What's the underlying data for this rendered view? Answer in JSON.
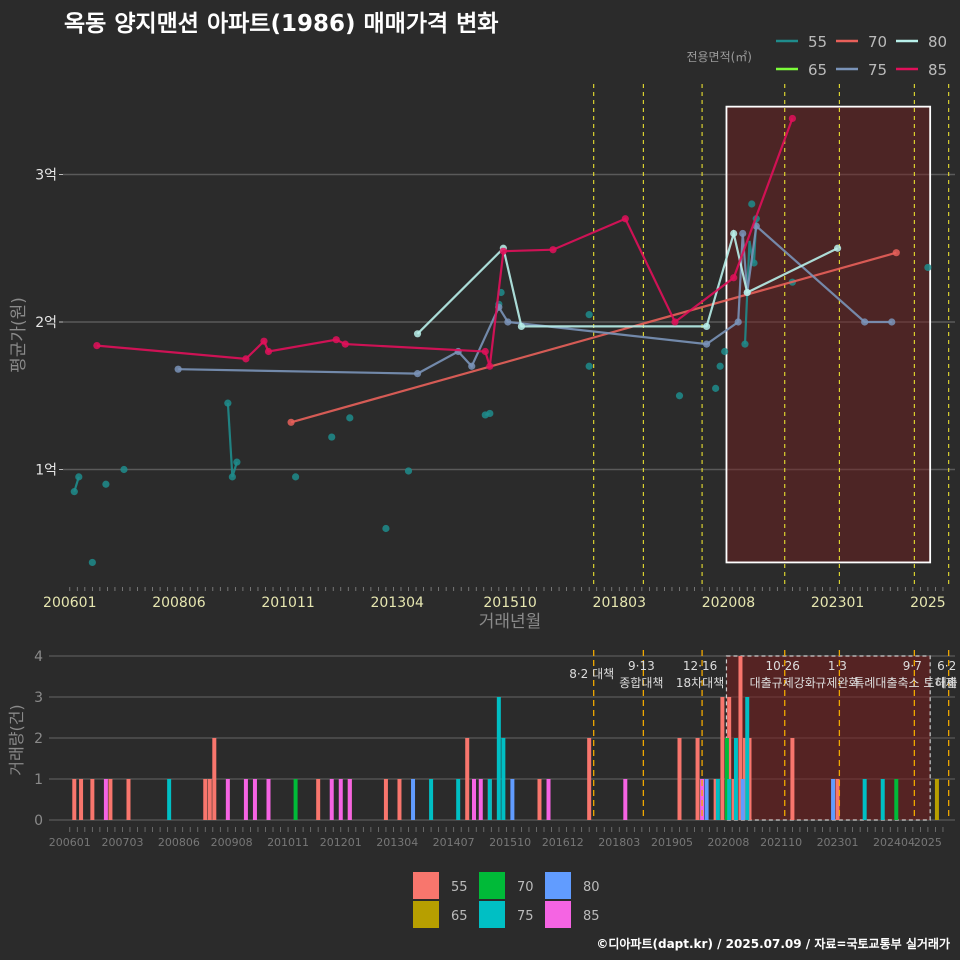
{
  "title": "옥동 양지맨션 아파트(1986) 매매가격 변화",
  "footer": "©디아파트(dapt.kr) / 2025.07.09 / 자료=국토교통부 실거래가",
  "colors": {
    "s55": "#1f8c8c",
    "s65": "#7cfc3a",
    "s70": "#e8605a",
    "s75": "#7a93b8",
    "s80": "#b8f0ea",
    "s85": "#e0105a",
    "b55": "#f8766d",
    "b65": "#b79f00",
    "b70": "#00ba38",
    "b75": "#00bfc4",
    "b80": "#619cff",
    "b85": "#f564e3",
    "policy": "#e8e030",
    "policy2": "#f0a800"
  },
  "chart_data": [
    {
      "type": "line",
      "ylabel": "평균가(원)",
      "xlabel": "거래년월",
      "legend_title": "전용면적(㎡)",
      "legend_position": "top-right",
      "x_ticks": [
        "200601",
        "200806",
        "201011",
        "201304",
        "201510",
        "201803",
        "202008",
        "202301",
        "2025"
      ],
      "y_ticks": [
        {
          "v": 1,
          "label": "1억"
        },
        {
          "v": 2,
          "label": "2억"
        },
        {
          "v": 3,
          "label": "3억"
        }
      ],
      "ylim": [
        0.3,
        3.6
      ],
      "highlight_box": {
        "x0": 2020.54,
        "x1": 2025.05,
        "y0": 0.37,
        "y1": 3.46
      },
      "policy_lines": [
        2017.6,
        2018.7,
        2020.0,
        2021.83,
        2023.04,
        2024.7,
        2025.46
      ],
      "series": [
        {
          "name": "55",
          "color_key": "s55",
          "lines": [
            [
              [
                2006.1,
                0.85
              ],
              [
                2006.2,
                0.95
              ]
            ],
            [
              [
                2009.5,
                1.45
              ],
              [
                2009.6,
                0.95
              ],
              [
                2009.7,
                1.05
              ]
            ],
            [
              [
                2015.2,
                1.37
              ],
              [
                2015.3,
                1.38
              ]
            ],
            [
              [
                2020.95,
                1.85
              ],
              [
                2021.05,
                2.55
              ],
              [
                2021.1,
                2.45
              ],
              [
                2021.15,
                2.4
              ],
              [
                2021.2,
                2.7
              ]
            ]
          ],
          "points": [
            [
              2006.1,
              0.85
            ],
            [
              2006.2,
              0.95
            ],
            [
              2006.5,
              0.37
            ],
            [
              2006.8,
              0.9
            ],
            [
              2007.2,
              1.0
            ],
            [
              2009.5,
              1.45
            ],
            [
              2009.6,
              0.95
            ],
            [
              2009.7,
              1.05
            ],
            [
              2011.0,
              0.95
            ],
            [
              2011.8,
              1.22
            ],
            [
              2012.2,
              1.35
            ],
            [
              2013.0,
              0.6
            ],
            [
              2013.5,
              0.99
            ],
            [
              2015.2,
              1.37
            ],
            [
              2015.3,
              1.38
            ],
            [
              2015.5,
              2.12
            ],
            [
              2015.55,
              2.2
            ],
            [
              2017.5,
              1.7
            ],
            [
              2017.5,
              2.05
            ],
            [
              2019.5,
              1.5
            ],
            [
              2020.3,
              1.55
            ],
            [
              2020.4,
              1.7
            ],
            [
              2020.5,
              1.8
            ],
            [
              2020.95,
              1.85
            ],
            [
              2021.1,
              2.8
            ],
            [
              2021.2,
              2.7
            ],
            [
              2021.15,
              2.4
            ],
            [
              2022.0,
              2.27
            ],
            [
              2025.0,
              2.37
            ]
          ]
        },
        {
          "name": "65",
          "color_key": "s65",
          "lines": [],
          "points": []
        },
        {
          "name": "70",
          "color_key": "s70",
          "lines": [
            [
              [
                2010.9,
                1.32
              ],
              [
                2024.3,
                2.47
              ]
            ]
          ],
          "points": [
            [
              2010.9,
              1.32
            ],
            [
              2024.3,
              2.47
            ]
          ]
        },
        {
          "name": "75",
          "color_key": "s75",
          "lines": [
            [
              [
                2008.4,
                1.68
              ],
              [
                2013.7,
                1.65
              ],
              [
                2014.6,
                1.8
              ],
              [
                2014.9,
                1.7
              ],
              [
                2015.5,
                2.1
              ],
              [
                2015.7,
                2.0
              ],
              [
                2020.1,
                1.85
              ],
              [
                2020.8,
                2.0
              ],
              [
                2020.9,
                2.6
              ],
              [
                2021.0,
                2.2
              ],
              [
                2021.2,
                2.65
              ],
              [
                2023.6,
                2.0
              ],
              [
                2024.2,
                2.0
              ]
            ]
          ],
          "points": [
            [
              2008.4,
              1.68
            ],
            [
              2013.7,
              1.65
            ],
            [
              2014.6,
              1.8
            ],
            [
              2014.9,
              1.7
            ],
            [
              2015.5,
              2.1
            ],
            [
              2015.7,
              2.0
            ],
            [
              2020.1,
              1.85
            ],
            [
              2020.8,
              2.0
            ],
            [
              2020.9,
              2.6
            ],
            [
              2021.0,
              2.2
            ],
            [
              2021.2,
              2.65
            ],
            [
              2023.6,
              2.0
            ],
            [
              2024.2,
              2.0
            ]
          ]
        },
        {
          "name": "80",
          "color_key": "s80",
          "lines": [
            [
              [
                2013.7,
                1.92
              ],
              [
                2015.6,
                2.5
              ],
              [
                2016.0,
                1.97
              ],
              [
                2020.1,
                1.97
              ],
              [
                2020.7,
                2.6
              ],
              [
                2021.0,
                2.2
              ],
              [
                2023.0,
                2.5
              ]
            ]
          ],
          "points": [
            [
              2013.7,
              1.92
            ],
            [
              2015.6,
              2.5
            ],
            [
              2016.0,
              1.97
            ],
            [
              2020.1,
              1.97
            ],
            [
              2020.7,
              2.6
            ],
            [
              2021.0,
              2.2
            ],
            [
              2023.0,
              2.5
            ]
          ]
        },
        {
          "name": "85",
          "color_key": "s85",
          "lines": [
            [
              [
                2006.6,
                1.84
              ],
              [
                2009.9,
                1.75
              ],
              [
                2010.3,
                1.87
              ],
              [
                2010.4,
                1.8
              ],
              [
                2011.9,
                1.88
              ],
              [
                2012.1,
                1.85
              ],
              [
                2015.2,
                1.8
              ],
              [
                2015.3,
                1.7
              ],
              [
                2015.6,
                2.48
              ],
              [
                2016.7,
                2.49
              ],
              [
                2018.3,
                2.7
              ],
              [
                2019.4,
                2.0
              ],
              [
                2020.7,
                2.3
              ],
              [
                2022.0,
                3.38
              ]
            ]
          ],
          "points": [
            [
              2006.6,
              1.84
            ],
            [
              2009.9,
              1.75
            ],
            [
              2010.3,
              1.87
            ],
            [
              2010.4,
              1.8
            ],
            [
              2011.9,
              1.88
            ],
            [
              2012.1,
              1.85
            ],
            [
              2015.2,
              1.8
            ],
            [
              2015.3,
              1.7
            ],
            [
              2015.6,
              2.48
            ],
            [
              2016.7,
              2.49
            ],
            [
              2018.3,
              2.7
            ],
            [
              2019.4,
              2.0
            ],
            [
              2020.7,
              2.3
            ],
            [
              2022.0,
              3.38
            ]
          ]
        }
      ]
    },
    {
      "type": "bar",
      "ylabel": "거래량(건)",
      "ylim": [
        0,
        4
      ],
      "y_ticks": [
        0,
        1,
        2,
        3,
        4
      ],
      "x_ticks": [
        "200601",
        "200703",
        "200806",
        "200908",
        "201011",
        "201201",
        "201304",
        "201407",
        "201510",
        "201612",
        "201803",
        "201905",
        "202008",
        "202110",
        "202301",
        "202404",
        "2025"
      ],
      "legend_position": "bottom",
      "highlight_box": {
        "x0": 2020.54,
        "x1": 2025.05,
        "y0": 0,
        "y1": 4
      },
      "policy_lines": [
        2017.6,
        2018.7,
        2020.0,
        2021.83,
        2023.04,
        2024.7,
        2025.46
      ],
      "policy_labels": [
        {
          "x": 2017.6,
          "top": "8·2 대책",
          "bottom": ""
        },
        {
          "x": 2018.7,
          "top": "9·13",
          "bottom": "종합대책"
        },
        {
          "x": 2020.0,
          "top": "12·16",
          "bottom": "18차대책"
        },
        {
          "x": 2021.83,
          "top": "10·26",
          "bottom": "대출규제강화"
        },
        {
          "x": 2023.04,
          "top": "1·3",
          "bottom": "규제완화"
        },
        {
          "x": 2024.7,
          "top": "9·7",
          "bottom": "특례대출축소 토허제 해"
        },
        {
          "x": 2025.46,
          "top": "6·2",
          "bottom": "대출"
        }
      ],
      "series": [
        {
          "name": "55",
          "color_key": "b55",
          "bars": [
            [
              2006.1,
              1
            ],
            [
              2006.25,
              1
            ],
            [
              2006.5,
              1
            ],
            [
              2006.9,
              1
            ],
            [
              2007.3,
              1
            ],
            [
              2009.0,
              1
            ],
            [
              2009.1,
              1
            ],
            [
              2009.2,
              2
            ],
            [
              2011.5,
              1
            ],
            [
              2012.2,
              1
            ],
            [
              2013.0,
              1
            ],
            [
              2013.3,
              1
            ],
            [
              2014.8,
              2
            ],
            [
              2015.3,
              1
            ],
            [
              2016.4,
              1
            ],
            [
              2017.5,
              2
            ],
            [
              2019.5,
              2
            ],
            [
              2019.9,
              2
            ],
            [
              2020.3,
              1
            ],
            [
              2020.45,
              3
            ],
            [
              2020.6,
              3
            ],
            [
              2020.7,
              1
            ],
            [
              2020.85,
              4
            ],
            [
              2020.95,
              2
            ],
            [
              2021.05,
              2
            ],
            [
              2022.0,
              2
            ],
            [
              2023.0,
              1
            ]
          ]
        },
        {
          "name": "65",
          "color_key": "b65",
          "bars": [
            [
              2025.2,
              1
            ]
          ]
        },
        {
          "name": "70",
          "color_key": "b70",
          "bars": [
            [
              2011.0,
              1
            ],
            [
              2020.55,
              2
            ],
            [
              2024.3,
              1
            ]
          ]
        },
        {
          "name": "75",
          "color_key": "b75",
          "bars": [
            [
              2008.2,
              1
            ],
            [
              2014.0,
              1
            ],
            [
              2014.6,
              1
            ],
            [
              2015.3,
              1
            ],
            [
              2015.5,
              3
            ],
            [
              2015.6,
              2
            ],
            [
              2020.35,
              1
            ],
            [
              2020.6,
              1
            ],
            [
              2020.75,
              2
            ],
            [
              2021.0,
              3
            ],
            [
              2023.6,
              1
            ],
            [
              2024.0,
              1
            ]
          ]
        },
        {
          "name": "80",
          "color_key": "b80",
          "bars": [
            [
              2013.6,
              1
            ],
            [
              2015.8,
              1
            ],
            [
              2020.1,
              1
            ],
            [
              2020.9,
              1
            ],
            [
              2022.9,
              1
            ]
          ]
        },
        {
          "name": "85",
          "color_key": "b85",
          "bars": [
            [
              2006.8,
              1
            ],
            [
              2009.5,
              1
            ],
            [
              2009.9,
              1
            ],
            [
              2010.1,
              1
            ],
            [
              2010.4,
              1
            ],
            [
              2011.8,
              1
            ],
            [
              2012.0,
              1
            ],
            [
              2012.2,
              1
            ],
            [
              2014.95,
              1
            ],
            [
              2015.1,
              1
            ],
            [
              2016.6,
              1
            ],
            [
              2018.3,
              1
            ],
            [
              2020.0,
              1
            ]
          ]
        }
      ]
    }
  ]
}
